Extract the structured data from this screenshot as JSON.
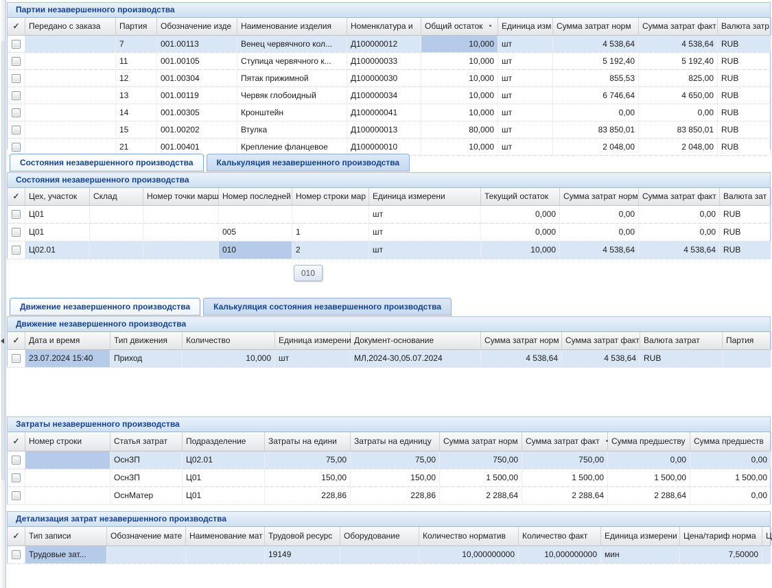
{
  "icons": {
    "select_all_check": "✓"
  },
  "tooltip": {
    "text": "010"
  },
  "tab_groups": [
    {
      "tabs": [
        {
          "label": "Состояния незавершенного производства",
          "active": true
        },
        {
          "label": "Калькуляция незавершенного производства",
          "active": false
        }
      ]
    },
    {
      "tabs": [
        {
          "label": "Движение незавершенного производства",
          "active": true
        },
        {
          "label": "Калькуляция состояния незавершенного производства",
          "active": false
        }
      ]
    }
  ],
  "tables": [
    {
      "title": "Партии незавершенного производства",
      "columns": [
        {
          "label": "Передано с заказа",
          "width": 132,
          "align": "l"
        },
        {
          "label": "Партия",
          "width": 60,
          "align": "l"
        },
        {
          "label": "Обозначение изде",
          "width": 117,
          "align": "l"
        },
        {
          "label": "Наименование изделия",
          "width": 160,
          "align": "l"
        },
        {
          "label": "Номенклатура и",
          "width": 108,
          "align": "l"
        },
        {
          "label": "Общий остаток",
          "width": 112,
          "align": "r",
          "marker": true
        },
        {
          "label": "Единица изм",
          "width": 80,
          "align": "l"
        },
        {
          "label": "Сумма затрат норм",
          "width": 125,
          "align": "r"
        },
        {
          "label": "Сумма затрат факт",
          "width": 115,
          "align": "r"
        },
        {
          "label": "Валюта затр",
          "width": 78,
          "align": "l"
        }
      ],
      "rows": [
        {
          "cells": [
            "",
            "7",
            "001.00113",
            "Венец червячного кол...",
            "Д100000012",
            "10,000",
            "шт",
            "4 538,64",
            "4 538,64",
            "RUB"
          ],
          "selected": true,
          "active_col": 5
        },
        {
          "cells": [
            "",
            "11",
            "001.00105",
            "Ступица червячного к...",
            "Д100000033",
            "10,000",
            "шт",
            "5 192,40",
            "5 192,40",
            "RUB"
          ]
        },
        {
          "cells": [
            "",
            "12",
            "001.00304",
            "Пятак прижимной",
            "Д100000030",
            "10,000",
            "шт",
            "855,53",
            "825,00",
            "RUB"
          ]
        },
        {
          "cells": [
            "",
            "13",
            "001.00119",
            "Червяк глобоидный",
            "Д100000034",
            "10,000",
            "шт",
            "6 746,64",
            "4 650,00",
            "RUB"
          ]
        },
        {
          "cells": [
            "",
            "14",
            "001.00305",
            "Кронштейн",
            "Д100000041",
            "10,000",
            "шт",
            "0,00",
            "0,00",
            "RUB"
          ]
        },
        {
          "cells": [
            "",
            "15",
            "001.00202",
            "Втулка",
            "Д100000013",
            "80,000",
            "шт",
            "83 850,01",
            "83 850,01",
            "RUB"
          ]
        },
        {
          "cells": [
            "",
            "21",
            "001.00401",
            "Крепление фланцевое",
            "Д100000010",
            "10,000",
            "шт",
            "2 048,00",
            "2 048,00",
            "RUB"
          ]
        }
      ]
    },
    {
      "title": "Состояния незавершенного производства",
      "columns": [
        {
          "label": "Цех, участок",
          "width": 94,
          "align": "l"
        },
        {
          "label": "Склад",
          "width": 78,
          "align": "l"
        },
        {
          "label": "Номер точки марш",
          "width": 110,
          "align": "l"
        },
        {
          "label": "Номер последней",
          "width": 107,
          "align": "l"
        },
        {
          "label": "Номер строки мар",
          "width": 112,
          "align": "l"
        },
        {
          "label": "Единица измерени",
          "width": 163,
          "align": "l"
        },
        {
          "label": "Текущий остаток",
          "width": 115,
          "align": "r"
        },
        {
          "label": "Сумма затрат норм",
          "width": 115,
          "align": "r"
        },
        {
          "label": "Сумма затрат факт",
          "width": 118,
          "align": "r"
        },
        {
          "label": "Валюта зат",
          "width": 75,
          "align": "l"
        }
      ],
      "rows": [
        {
          "cells": [
            "Ц01",
            "",
            "",
            "",
            "",
            "шт",
            "0,000",
            "0,00",
            "0,00",
            "RUB"
          ]
        },
        {
          "cells": [
            "Ц01",
            "",
            "",
            "005",
            "1",
            "шт",
            "0,000",
            "0,00",
            "0,00",
            "RUB"
          ]
        },
        {
          "cells": [
            "Ц02.01",
            "",
            "",
            "010",
            "2",
            "шт",
            "10,000",
            "4 538,64",
            "4 538,64",
            "RUB"
          ],
          "selected": true,
          "active_col": 3
        }
      ]
    },
    {
      "title": "Движение незавершенного производства",
      "columns": [
        {
          "label": "Дата и время",
          "width": 124,
          "align": "l"
        },
        {
          "label": "Тип движения",
          "width": 105,
          "align": "l"
        },
        {
          "label": "Количество",
          "width": 135,
          "align": "r"
        },
        {
          "label": "Единица измерени",
          "width": 110,
          "align": "l"
        },
        {
          "label": "Документ-основание",
          "width": 190,
          "align": "l"
        },
        {
          "label": "Сумма затрат норм",
          "width": 118,
          "align": "r"
        },
        {
          "label": "Сумма затрат факт",
          "width": 114,
          "align": "r"
        },
        {
          "label": "Валюта затрат",
          "width": 120,
          "align": "l"
        },
        {
          "label": "Партия",
          "width": 71,
          "align": "l"
        }
      ],
      "rows": [
        {
          "cells": [
            "23.07.2024 15:40",
            "Приход",
            "10,000",
            "шт",
            "МЛ,2024-30,05.07.2024",
            "4 538,64",
            "4 538,64",
            "RUB",
            ""
          ],
          "selected": true,
          "active_col": 0
        }
      ]
    },
    {
      "title": "Затраты незавершенного производства",
      "columns": [
        {
          "label": "Номер строки",
          "width": 124,
          "align": "l"
        },
        {
          "label": "Статья затрат",
          "width": 105,
          "align": "l"
        },
        {
          "label": "Подразделение",
          "width": 120,
          "align": "l"
        },
        {
          "label": "Затраты на едини",
          "width": 125,
          "align": "r"
        },
        {
          "label": "Затраты на единицу",
          "width": 130,
          "align": "r"
        },
        {
          "label": "Сумма затрат норм",
          "width": 120,
          "align": "r"
        },
        {
          "label": "Сумма затрат факт",
          "width": 125,
          "align": "r",
          "marker": true
        },
        {
          "label": "Сумма предшеству",
          "width": 120,
          "align": "r"
        },
        {
          "label": "Сумма предшеств",
          "width": 118,
          "align": "r"
        }
      ],
      "rows": [
        {
          "cells": [
            "",
            "ОснЗП",
            "Ц02.01",
            "75,00",
            "75,00",
            "750,00",
            "750,00",
            "0,00",
            "0,00"
          ],
          "selected": true,
          "active_col": 0
        },
        {
          "cells": [
            "",
            "ОснЗП",
            "Ц01",
            "150,00",
            "150,00",
            "1 500,00",
            "1 500,00",
            "1 500,00",
            "1 500,00"
          ]
        },
        {
          "cells": [
            "",
            "ОснМатер",
            "Ц01",
            "228,86",
            "228,86",
            "2 288,64",
            "2 288,64",
            "2 288,64",
            "0,00"
          ]
        }
      ]
    },
    {
      "title": "Детализация затрат незавершенного производства",
      "columns": [
        {
          "label": "Тип записи",
          "width": 119,
          "align": "l"
        },
        {
          "label": "Обозначение мате",
          "width": 115,
          "align": "l"
        },
        {
          "label": "Наименование мат",
          "width": 115,
          "align": "l"
        },
        {
          "label": "Трудовой ресурс",
          "width": 110,
          "align": "l"
        },
        {
          "label": "Оборудование",
          "width": 115,
          "align": "l"
        },
        {
          "label": "Количество норматив",
          "width": 145,
          "align": "r"
        },
        {
          "label": "Количество факт",
          "width": 120,
          "align": "r"
        },
        {
          "label": "Единица измерени",
          "width": 115,
          "align": "l"
        },
        {
          "label": "Цена/тариф норма",
          "width": 120,
          "align": "r"
        },
        {
          "label": "Ц",
          "width": 13,
          "align": "l"
        }
      ],
      "rows": [
        {
          "cells": [
            "Трудовые зат...",
            "",
            "",
            "19149",
            "",
            "10,000000000",
            "10,000000000",
            "мин",
            "7,50000",
            ""
          ],
          "selected": true,
          "active_col": 0
        }
      ]
    }
  ]
}
